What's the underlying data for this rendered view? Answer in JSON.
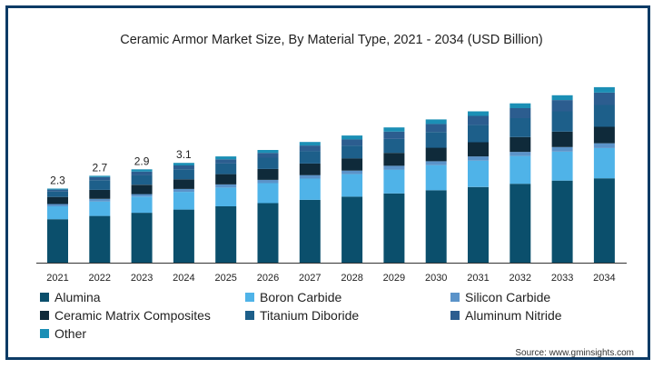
{
  "chart_data": {
    "type": "bar",
    "stacked": true,
    "title": "Ceramic Armor Market Size, By Material Type, 2021 - 2034 (USD Billion)",
    "categories": [
      "2021",
      "2022",
      "2023",
      "2024",
      "2025",
      "2026",
      "2027",
      "2028",
      "2029",
      "2030",
      "2031",
      "2032",
      "2033",
      "2034"
    ],
    "value_labels": [
      "2.3",
      "2.7",
      "2.9",
      "3.1",
      "",
      "",
      "",
      "",
      "",
      "",
      "",
      "",
      "",
      ""
    ],
    "totals": [
      2.3,
      2.7,
      2.9,
      3.1,
      3.3,
      3.5,
      3.75,
      3.95,
      4.2,
      4.45,
      4.7,
      4.95,
      5.2,
      5.45
    ],
    "series": [
      {
        "name": "Alumina",
        "color": "#0b4f6c",
        "values": [
          1.35,
          1.45,
          1.55,
          1.65,
          1.75,
          1.85,
          1.95,
          2.05,
          2.15,
          2.25,
          2.35,
          2.45,
          2.55,
          2.62
        ]
      },
      {
        "name": "Boron Carbide",
        "color": "#4fb3e8",
        "values": [
          0.4,
          0.45,
          0.5,
          0.55,
          0.58,
          0.62,
          0.66,
          0.7,
          0.74,
          0.78,
          0.82,
          0.86,
          0.9,
          0.94
        ]
      },
      {
        "name": "Silicon Carbide",
        "color": "#5b93c9",
        "values": [
          0.07,
          0.08,
          0.08,
          0.09,
          0.1,
          0.1,
          0.11,
          0.11,
          0.12,
          0.12,
          0.13,
          0.13,
          0.14,
          0.15
        ]
      },
      {
        "name": "Ceramic Matrix Composites",
        "color": "#0f2a3a",
        "values": [
          0.22,
          0.28,
          0.29,
          0.3,
          0.32,
          0.34,
          0.36,
          0.38,
          0.4,
          0.42,
          0.44,
          0.46,
          0.48,
          0.51
        ]
      },
      {
        "name": "Titanium Diboride",
        "color": "#1d5f8a",
        "values": [
          0.17,
          0.3,
          0.3,
          0.31,
          0.33,
          0.35,
          0.39,
          0.4,
          0.43,
          0.49,
          0.54,
          0.59,
          0.63,
          0.68
        ]
      },
      {
        "name": "Aluminum Nitride",
        "color": "#2c5d8f",
        "values": [
          0.06,
          0.1,
          0.11,
          0.12,
          0.13,
          0.15,
          0.17,
          0.19,
          0.23,
          0.25,
          0.28,
          0.31,
          0.35,
          0.38
        ]
      },
      {
        "name": "Other",
        "color": "#1b8fb5",
        "values": [
          0.03,
          0.04,
          0.07,
          0.08,
          0.09,
          0.09,
          0.11,
          0.12,
          0.13,
          0.14,
          0.14,
          0.15,
          0.15,
          0.17
        ]
      }
    ],
    "ylim": [
      0,
      5.9
    ],
    "xlabel": "",
    "ylabel": "",
    "legend_position": "bottom",
    "grid": false
  },
  "source_text": "Source: www.gminsights.com"
}
